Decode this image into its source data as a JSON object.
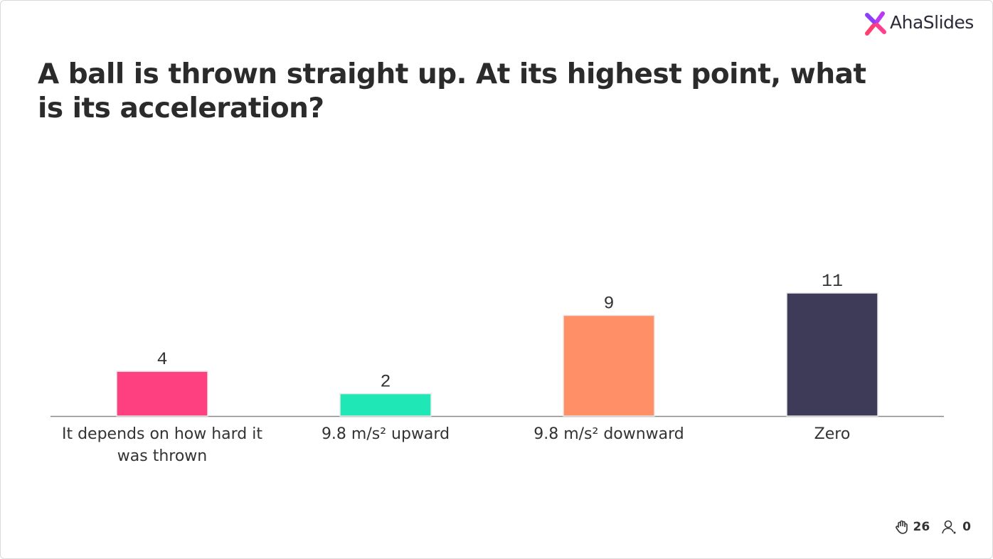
{
  "brand": "AhaSlides",
  "chart_data": {
    "type": "bar",
    "title": "A ball is thrown straight up. At its highest point, what is its acceleration?",
    "categories": [
      "It depends on how hard it was thrown",
      "9.8 m/s² upward",
      "9.8 m/s² downward",
      "Zero"
    ],
    "values": [
      4,
      2,
      9,
      11
    ],
    "colors": [
      "#fe3f80",
      "#1fe8b6",
      "#ff8f66",
      "#3d3b57"
    ]
  },
  "footer": {
    "reactions": 26,
    "participants": 0
  }
}
